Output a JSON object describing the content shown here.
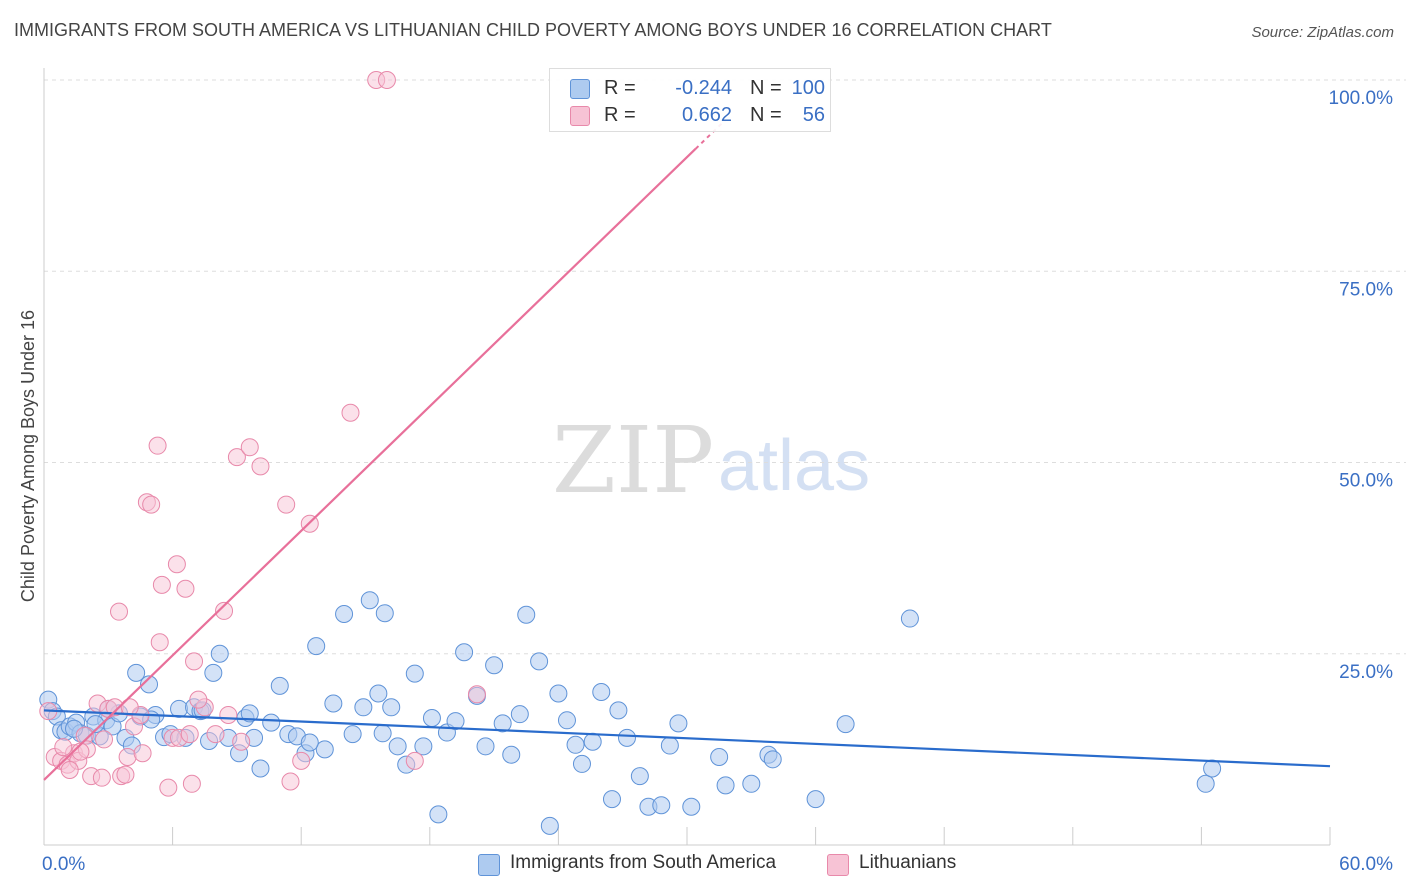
{
  "title": "IMMIGRANTS FROM SOUTH AMERICA VS LITHUANIAN CHILD POVERTY AMONG BOYS UNDER 16 CORRELATION CHART",
  "source": "Source: ZipAtlas.com",
  "watermark": {
    "zip": "ZIP",
    "atlas": "atlas"
  },
  "legend": {
    "r_label": "R =",
    "n_label": "N =",
    "rows": [
      {
        "r": "-0.244",
        "n": "100",
        "color": "#aecbf0",
        "border": "#5f93d8"
      },
      {
        "r": "0.662",
        "n": "56",
        "color": "#f7c3d5",
        "border": "#e889aa"
      }
    ]
  },
  "bottom_legend": {
    "blue": "Immigrants from South America",
    "pink": "Lithuanians"
  },
  "chart_data": {
    "type": "scatter",
    "title": "IMMIGRANTS FROM SOUTH AMERICA VS LITHUANIAN CHILD POVERTY AMONG BOYS UNDER 16 CORRELATION CHART",
    "xlabel": "",
    "ylabel": "Child Poverty Among Boys Under 16",
    "xlim": [
      0,
      60
    ],
    "ylim": [
      0,
      100
    ],
    "x_tick_labels": [
      "0.0%",
      "60.0%"
    ],
    "y_ticks": [
      25,
      50,
      75,
      100
    ],
    "y_tick_labels": [
      "25.0%",
      "50.0%",
      "75.0%",
      "100.0%"
    ],
    "grid": true,
    "legend_placement": "top-center",
    "colors": {
      "blue": "#4f86d6",
      "pink": "#e8709a"
    },
    "series": [
      {
        "name": "Immigrants from South America",
        "color": "#aecbf0",
        "trend": {
          "x": [
            0,
            60
          ],
          "y": [
            17.6,
            10.3
          ]
        },
        "points": [
          [
            0.2,
            19.0
          ],
          [
            0.4,
            17.5
          ],
          [
            0.6,
            16.8
          ],
          [
            0.8,
            15.0
          ],
          [
            1.0,
            14.8
          ],
          [
            1.2,
            15.5
          ],
          [
            1.5,
            16.0
          ],
          [
            1.7,
            14.6
          ],
          [
            2.0,
            14.3
          ],
          [
            2.3,
            16.8
          ],
          [
            2.6,
            14.2
          ],
          [
            2.9,
            16.3
          ],
          [
            3.2,
            15.5
          ],
          [
            3.5,
            17.2
          ],
          [
            3.8,
            14.0
          ],
          [
            4.1,
            13.0
          ],
          [
            4.3,
            22.5
          ],
          [
            4.5,
            16.8
          ],
          [
            4.9,
            21.0
          ],
          [
            5.2,
            17.0
          ],
          [
            5.6,
            14.1
          ],
          [
            5.9,
            14.5
          ],
          [
            6.3,
            17.8
          ],
          [
            6.6,
            14.0
          ],
          [
            7.0,
            18.0
          ],
          [
            7.3,
            17.5
          ],
          [
            7.7,
            13.6
          ],
          [
            7.9,
            22.5
          ],
          [
            8.2,
            25.0
          ],
          [
            8.6,
            14.0
          ],
          [
            9.1,
            12.0
          ],
          [
            9.4,
            16.6
          ],
          [
            9.8,
            14.0
          ],
          [
            10.1,
            10.0
          ],
          [
            10.6,
            16.0
          ],
          [
            11.0,
            20.8
          ],
          [
            11.4,
            14.5
          ],
          [
            11.8,
            14.2
          ],
          [
            12.2,
            12.0
          ],
          [
            12.7,
            26.0
          ],
          [
            13.1,
            12.5
          ],
          [
            13.5,
            18.5
          ],
          [
            14.0,
            30.2
          ],
          [
            14.4,
            14.5
          ],
          [
            14.9,
            18.0
          ],
          [
            15.2,
            32.0
          ],
          [
            15.6,
            19.8
          ],
          [
            15.9,
            30.3
          ],
          [
            16.2,
            18.0
          ],
          [
            16.5,
            12.9
          ],
          [
            16.9,
            10.5
          ],
          [
            17.3,
            22.4
          ],
          [
            17.7,
            12.9
          ],
          [
            18.1,
            16.6
          ],
          [
            18.4,
            4.0
          ],
          [
            18.8,
            14.7
          ],
          [
            19.2,
            16.2
          ],
          [
            19.6,
            25.2
          ],
          [
            20.2,
            19.5
          ],
          [
            20.6,
            12.9
          ],
          [
            21.0,
            23.5
          ],
          [
            21.4,
            15.9
          ],
          [
            21.8,
            11.8
          ],
          [
            22.2,
            17.1
          ],
          [
            22.5,
            30.1
          ],
          [
            23.1,
            24.0
          ],
          [
            23.6,
            2.5
          ],
          [
            24.0,
            19.8
          ],
          [
            24.4,
            16.3
          ],
          [
            24.8,
            13.1
          ],
          [
            25.1,
            10.6
          ],
          [
            25.6,
            13.5
          ],
          [
            26.0,
            20.0
          ],
          [
            26.5,
            6.0
          ],
          [
            26.8,
            17.6
          ],
          [
            27.2,
            14.0
          ],
          [
            27.8,
            9.0
          ],
          [
            28.2,
            5.0
          ],
          [
            28.8,
            5.2
          ],
          [
            29.2,
            13.0
          ],
          [
            29.6,
            15.9
          ],
          [
            30.2,
            5.0
          ],
          [
            31.5,
            11.5
          ],
          [
            31.8,
            7.8
          ],
          [
            33.0,
            8.0
          ],
          [
            33.8,
            11.8
          ],
          [
            34.0,
            11.2
          ],
          [
            36.0,
            6.0
          ],
          [
            37.4,
            15.8
          ],
          [
            40.4,
            29.6
          ],
          [
            54.2,
            8.0
          ],
          [
            54.5,
            10.0
          ],
          [
            1.4,
            15.2
          ],
          [
            2.4,
            15.8
          ],
          [
            3.0,
            17.8
          ],
          [
            5.0,
            16.4
          ],
          [
            7.4,
            17.6
          ],
          [
            9.6,
            17.2
          ],
          [
            12.4,
            13.4
          ],
          [
            15.8,
            14.6
          ]
        ]
      },
      {
        "name": "Lithuanians",
        "color": "#f7c3d5",
        "trend": {
          "x": [
            0,
            30.4
          ],
          "y": [
            8.5,
            91.0
          ]
        },
        "points": [
          [
            0.2,
            17.5
          ],
          [
            0.5,
            11.5
          ],
          [
            0.8,
            11.0
          ],
          [
            1.1,
            10.5
          ],
          [
            1.4,
            12.0
          ],
          [
            1.6,
            11.0
          ],
          [
            1.9,
            14.3
          ],
          [
            2.2,
            9.0
          ],
          [
            2.5,
            18.5
          ],
          [
            2.7,
            8.8
          ],
          [
            3.0,
            17.8
          ],
          [
            3.3,
            18.0
          ],
          [
            3.6,
            9.0
          ],
          [
            3.9,
            11.5
          ],
          [
            4.2,
            15.5
          ],
          [
            4.5,
            17.0
          ],
          [
            4.8,
            44.8
          ],
          [
            5.0,
            44.5
          ],
          [
            5.4,
            26.5
          ],
          [
            5.8,
            7.5
          ],
          [
            6.0,
            14.0
          ],
          [
            6.3,
            14.0
          ],
          [
            6.6,
            33.5
          ],
          [
            7.0,
            24.0
          ],
          [
            7.5,
            18.0
          ],
          [
            8.0,
            14.5
          ],
          [
            8.6,
            17.0
          ],
          [
            9.0,
            50.7
          ],
          [
            9.6,
            52.0
          ],
          [
            10.1,
            49.5
          ],
          [
            11.3,
            44.5
          ],
          [
            12.4,
            42.0
          ],
          [
            14.3,
            56.5
          ],
          [
            15.5,
            100.0
          ],
          [
            16.0,
            100.0
          ],
          [
            17.3,
            11.0
          ],
          [
            20.2,
            19.7
          ],
          [
            4.0,
            18.0
          ],
          [
            3.5,
            30.5
          ],
          [
            5.3,
            52.2
          ],
          [
            6.2,
            36.7
          ],
          [
            5.5,
            34.0
          ],
          [
            6.8,
            14.5
          ],
          [
            7.2,
            19.0
          ],
          [
            8.4,
            30.6
          ],
          [
            9.2,
            13.5
          ],
          [
            1.2,
            9.8
          ],
          [
            2.0,
            12.5
          ],
          [
            0.9,
            12.8
          ],
          [
            3.8,
            9.2
          ],
          [
            11.5,
            8.3
          ],
          [
            12.0,
            11.0
          ],
          [
            4.6,
            12.0
          ],
          [
            6.9,
            8.0
          ],
          [
            2.8,
            13.8
          ],
          [
            1.7,
            12.2
          ]
        ]
      }
    ]
  }
}
